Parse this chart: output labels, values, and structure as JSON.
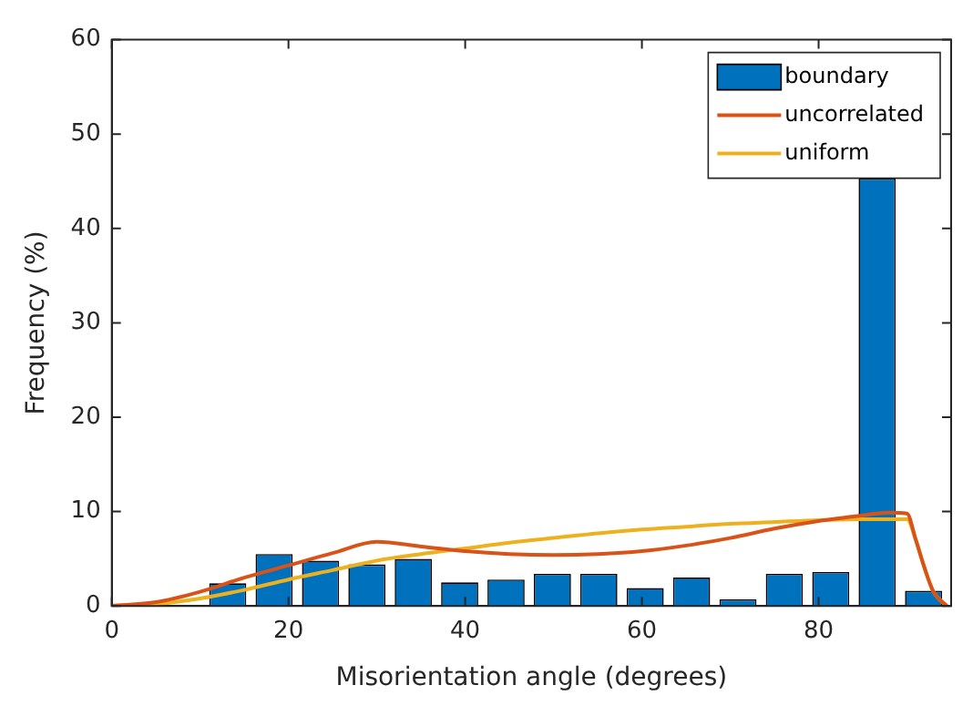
{
  "chart_data": {
    "type": "histogram",
    "xlabel": "Misorientation angle (degrees)",
    "ylabel": "Frequency (%)",
    "bins": [
      0,
      5.25,
      10.5,
      15.75,
      21,
      26.25,
      31.5,
      36.75,
      42,
      47.25,
      52.5,
      57.75,
      63,
      68.25,
      73.5,
      78.75,
      84,
      89.25,
      94.5
    ],
    "series": [
      {
        "name": "boundary",
        "color": "#0072bd",
        "values": [
          0,
          0,
          2.4,
          5.5,
          4.8,
          4.4,
          5.0,
          2.5,
          2.8,
          3.4,
          3.4,
          1.9,
          3.0,
          0.7,
          3.4,
          3.6,
          45.3,
          1.6
        ]
      },
      {
        "name": "uncorrelated",
        "type": "line",
        "color": "#d95319",
        "x": [
          0,
          5,
          10,
          15,
          20,
          25,
          30,
          35,
          40,
          45,
          50,
          55,
          60,
          65,
          70,
          75,
          80,
          85,
          88,
          90,
          91,
          92,
          93,
          94.5
        ],
        "values": [
          0,
          0.4,
          1.5,
          3,
          4.3,
          5.6,
          6.8,
          6.3,
          5.8,
          5.5,
          5.4,
          5.5,
          5.8,
          6.4,
          7.2,
          8.2,
          9.0,
          9.6,
          9.9,
          9.8,
          7,
          4,
          1.5,
          0
        ]
      },
      {
        "name": "uniform",
        "type": "line",
        "color": "#edb120",
        "x": [
          0,
          5,
          10,
          15,
          20,
          25,
          30,
          35,
          40,
          45,
          50,
          55,
          60,
          65,
          70,
          75,
          80,
          85,
          90,
          91,
          92,
          93,
          94.5
        ],
        "values": [
          0,
          0.2,
          0.8,
          1.7,
          2.8,
          3.8,
          4.8,
          5.5,
          6.1,
          6.7,
          7.2,
          7.7,
          8.1,
          8.4,
          8.7,
          8.9,
          9.1,
          9.2,
          9.2,
          7,
          4,
          1.5,
          0
        ]
      }
    ],
    "xlim": [
      0,
      95
    ],
    "xticks": [
      0,
      20,
      40,
      60,
      80
    ],
    "ylim": [
      0,
      60
    ],
    "yticks": [
      0,
      10,
      20,
      30,
      40,
      50,
      60
    ],
    "grid": false,
    "legend": "top right",
    "marker": "none",
    "line_style": "solid"
  }
}
